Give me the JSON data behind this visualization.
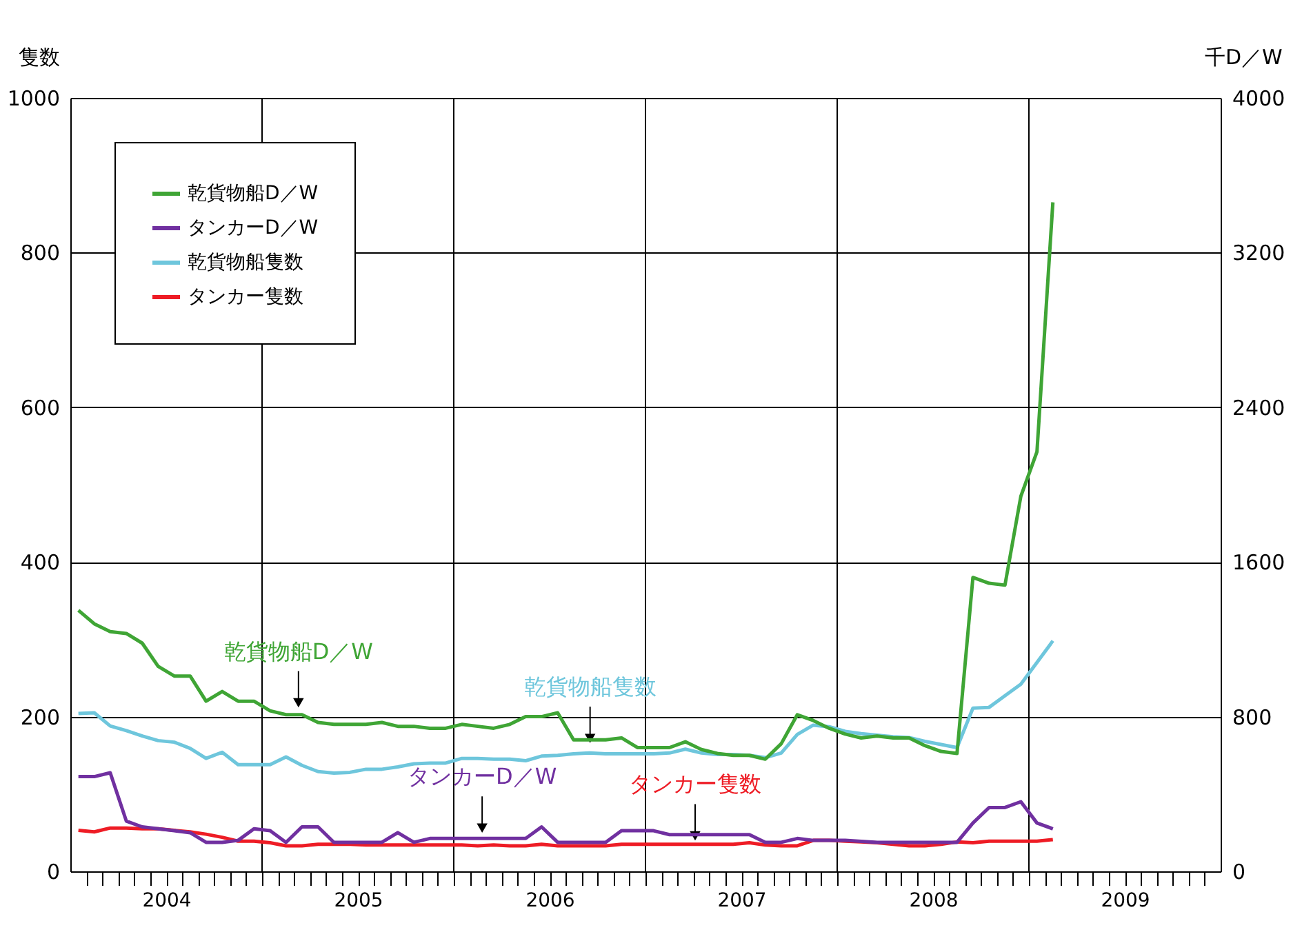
{
  "chart_data": {
    "type": "line",
    "ylabel": "隻数",
    "y2label": "千D／W",
    "x": [
      2004.042,
      2004.125,
      2004.208,
      2004.292,
      2004.375,
      2004.458,
      2004.542,
      2004.625,
      2004.708,
      2004.792,
      2004.875,
      2004.958,
      2005.042,
      2005.125,
      2005.208,
      2005.292,
      2005.375,
      2005.458,
      2005.542,
      2005.625,
      2005.708,
      2005.792,
      2005.875,
      2005.958,
      2006.042,
      2006.125,
      2006.208,
      2006.292,
      2006.375,
      2006.458,
      2006.542,
      2006.625,
      2006.708,
      2006.792,
      2006.875,
      2006.958,
      2007.042,
      2007.125,
      2007.208,
      2007.292,
      2007.375,
      2007.458,
      2007.542,
      2007.625,
      2007.708,
      2007.792,
      2007.875,
      2007.958,
      2008.042,
      2008.125,
      2008.208,
      2008.292,
      2008.375,
      2008.458,
      2008.542,
      2008.625,
      2008.708,
      2008.792,
      2008.875,
      2008.958,
      2009.042,
      2009.125
    ],
    "series": [
      {
        "name": "乾貨物船D／W",
        "color": "#3fa535",
        "axis": "y2",
        "values": [
          1350,
          1280,
          1240,
          1230,
          1180,
          1060,
          1010,
          1010,
          880,
          930,
          880,
          880,
          830,
          810,
          810,
          770,
          760,
          760,
          760,
          770,
          750,
          750,
          740,
          740,
          760,
          750,
          740,
          760,
          800,
          800,
          820,
          680,
          680,
          680,
          690,
          640,
          640,
          640,
          670,
          630,
          610,
          600,
          600,
          580,
          660,
          810,
          780,
          740,
          710,
          690,
          700,
          690,
          690,
          650,
          620,
          610,
          1520,
          1490,
          1480,
          1940,
          2170,
          3460
        ]
      },
      {
        "name": "タンカーD／W",
        "color": "#7030a0",
        "axis": "y2",
        "values": [
          490,
          490,
          510,
          260,
          230,
          220,
          210,
          200,
          150,
          150,
          160,
          220,
          210,
          150,
          230,
          230,
          150,
          150,
          150,
          150,
          200,
          150,
          170,
          170,
          170,
          170,
          170,
          170,
          170,
          230,
          150,
          150,
          150,
          150,
          210,
          210,
          210,
          190,
          190,
          190,
          190,
          190,
          190,
          150,
          150,
          170,
          160,
          160,
          160,
          155,
          150,
          150,
          150,
          150,
          150,
          150,
          250,
          330,
          330,
          360,
          250,
          220
        ]
      },
      {
        "name": "乾貨物船隻数",
        "color": "#6ec6dc",
        "values": [
          204,
          205,
          188,
          182,
          175,
          169,
          167,
          159,
          146,
          154,
          138,
          138,
          138,
          148,
          137,
          129,
          127,
          128,
          132,
          132,
          135,
          139,
          140,
          140,
          146,
          146,
          145,
          145,
          143,
          149,
          150,
          152,
          153,
          152,
          152,
          152,
          152,
          153,
          158,
          153,
          151,
          151,
          150,
          147,
          153,
          177,
          189,
          187,
          181,
          178,
          176,
          174,
          173,
          168,
          164,
          160,
          211,
          212,
          227,
          242,
          270,
          298
        ]
      },
      {
        "name": "タンカー隻数",
        "color": "#ee1c25",
        "values": [
          53,
          51,
          56,
          56,
          55,
          55,
          53,
          51,
          48,
          44,
          39,
          39,
          37,
          33,
          33,
          35,
          35,
          35,
          34,
          34,
          34,
          34,
          34,
          34,
          34,
          33,
          34,
          33,
          33,
          35,
          33,
          33,
          33,
          33,
          35,
          35,
          35,
          35,
          35,
          35,
          35,
          35,
          37,
          34,
          33,
          33,
          40,
          40,
          39,
          38,
          37,
          35,
          33,
          33,
          35,
          38,
          37,
          39,
          39,
          39,
          39,
          41
        ]
      }
    ],
    "annotations": [
      {
        "text": "乾貨物船D／W",
        "x": 2005.19,
        "y": 209
      },
      {
        "text": "タンカーD／W",
        "x": 2006.148,
        "y": 47
      },
      {
        "text": "乾貨物船隻数",
        "x": 2006.711,
        "y": 163
      },
      {
        "text": "タンカー隻数",
        "x": 2007.259,
        "y": 37
      }
    ],
    "xlim": [
      2004,
      2010
    ],
    "xticks": [
      {
        "value": 2004.083,
        "label": null
      },
      {
        "value": 2004.167,
        "label": null
      },
      {
        "value": 2004.25,
        "label": null
      },
      {
        "value": 2004.333,
        "label": null
      },
      {
        "value": 2004.417,
        "label": null
      },
      {
        "value": 2004.5,
        "label": "2004"
      },
      {
        "value": 2004.583,
        "label": null
      },
      {
        "value": 2004.667,
        "label": null
      },
      {
        "value": 2004.75,
        "label": null
      },
      {
        "value": 2004.833,
        "label": null
      },
      {
        "value": 2004.917,
        "label": null
      },
      {
        "value": 2005,
        "label": null
      },
      {
        "value": 2005.083,
        "label": null
      },
      {
        "value": 2005.167,
        "label": null
      },
      {
        "value": 2005.25,
        "label": null
      },
      {
        "value": 2005.333,
        "label": null
      },
      {
        "value": 2005.417,
        "label": null
      },
      {
        "value": 2005.5,
        "label": "2005"
      },
      {
        "value": 2005.583,
        "label": null
      },
      {
        "value": 2005.667,
        "label": null
      },
      {
        "value": 2005.75,
        "label": null
      },
      {
        "value": 2005.833,
        "label": null
      },
      {
        "value": 2005.917,
        "label": null
      },
      {
        "value": 2006,
        "label": null
      },
      {
        "value": 2006.083,
        "label": null
      },
      {
        "value": 2006.167,
        "label": null
      },
      {
        "value": 2006.25,
        "label": null
      },
      {
        "value": 2006.333,
        "label": null
      },
      {
        "value": 2006.417,
        "label": null
      },
      {
        "value": 2006.5,
        "label": "2006"
      },
      {
        "value": 2006.583,
        "label": null
      },
      {
        "value": 2006.667,
        "label": null
      },
      {
        "value": 2006.75,
        "label": null
      },
      {
        "value": 2006.833,
        "label": null
      },
      {
        "value": 2006.917,
        "label": null
      },
      {
        "value": 2007,
        "label": null
      },
      {
        "value": 2007.083,
        "label": null
      },
      {
        "value": 2007.167,
        "label": null
      },
      {
        "value": 2007.25,
        "label": null
      },
      {
        "value": 2007.333,
        "label": null
      },
      {
        "value": 2007.417,
        "label": null
      },
      {
        "value": 2007.5,
        "label": "2007"
      },
      {
        "value": 2007.583,
        "label": null
      },
      {
        "value": 2007.667,
        "label": null
      },
      {
        "value": 2007.75,
        "label": null
      },
      {
        "value": 2007.833,
        "label": null
      },
      {
        "value": 2007.917,
        "label": null
      },
      {
        "value": 2008,
        "label": null
      },
      {
        "value": 2008.083,
        "label": null
      },
      {
        "value": 2008.167,
        "label": null
      },
      {
        "value": 2008.25,
        "label": null
      },
      {
        "value": 2008.333,
        "label": null
      },
      {
        "value": 2008.417,
        "label": null
      },
      {
        "value": 2008.5,
        "label": "2008"
      },
      {
        "value": 2008.583,
        "label": null
      },
      {
        "value": 2008.667,
        "label": null
      },
      {
        "value": 2008.75,
        "label": null
      },
      {
        "value": 2008.833,
        "label": null
      },
      {
        "value": 2008.917,
        "label": null
      },
      {
        "value": 2009,
        "label": null
      },
      {
        "value": 2009.083,
        "label": null
      },
      {
        "value": 2009.167,
        "label": null
      },
      {
        "value": 2009.25,
        "label": null
      },
      {
        "value": 2009.333,
        "label": null
      },
      {
        "value": 2009.417,
        "label": null
      },
      {
        "value": 2009.5,
        "label": "2009"
      },
      {
        "value": 2009.583,
        "label": null
      },
      {
        "value": 2009.667,
        "label": null
      },
      {
        "value": 2009.75,
        "label": null
      },
      {
        "value": 2009.833,
        "label": null
      },
      {
        "value": 2009.917,
        "label": null
      }
    ],
    "ylim": [
      0,
      1000
    ],
    "yticks": [
      0,
      200,
      400,
      600,
      800,
      1000
    ],
    "y2lim": [
      0,
      4000
    ],
    "y2ticks": [
      0,
      800,
      1600,
      2400,
      3200,
      4000
    ],
    "ref_lines": [
      {
        "axis": "x",
        "value": 2005,
        "color": "#000000"
      },
      {
        "axis": "x",
        "value": 2006,
        "color": "#000000"
      },
      {
        "axis": "x",
        "value": 2007,
        "color": "#000000"
      },
      {
        "axis": "x",
        "value": 2008,
        "color": "#000000"
      },
      {
        "axis": "x",
        "value": 2009,
        "color": "#000000"
      }
    ],
    "grid": "y",
    "legend": "top left",
    "marker": "none",
    "line_style": "solid"
  }
}
